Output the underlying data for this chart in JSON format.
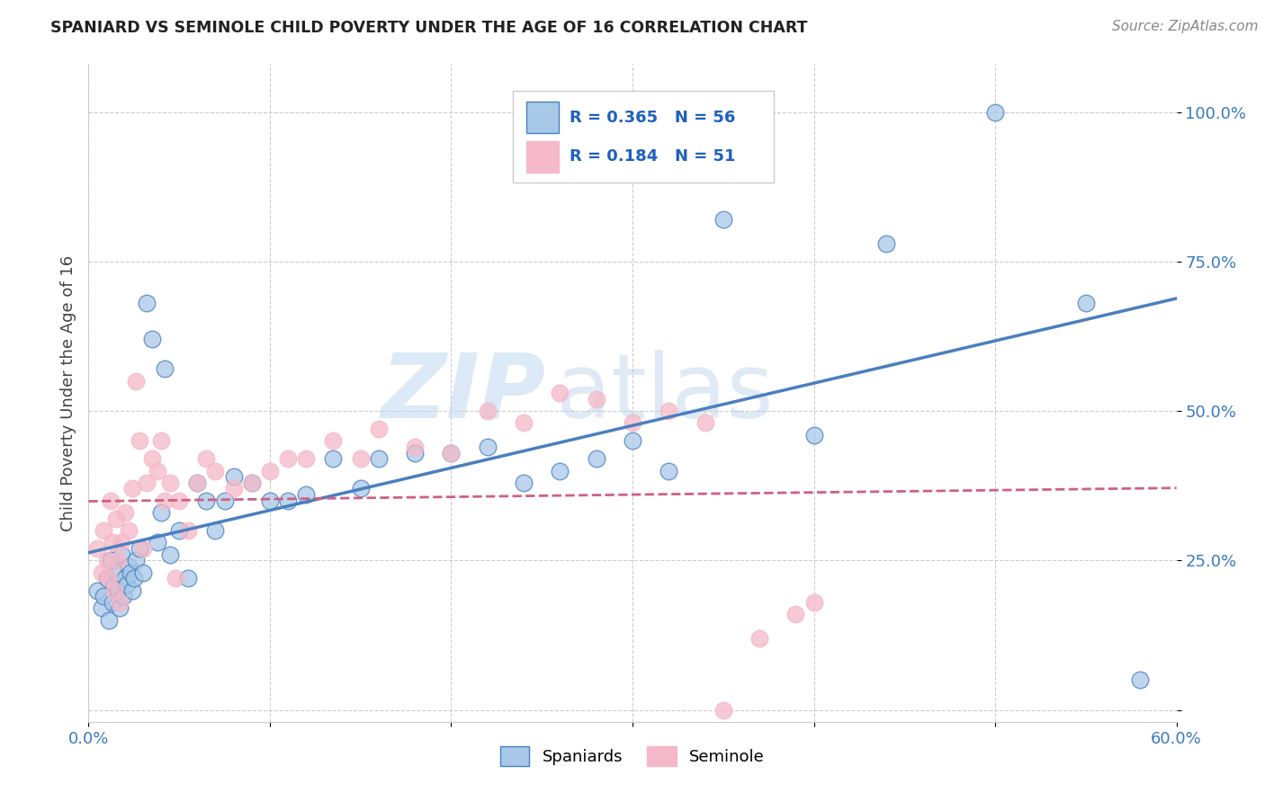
{
  "title": "SPANIARD VS SEMINOLE CHILD POVERTY UNDER THE AGE OF 16 CORRELATION CHART",
  "source": "Source: ZipAtlas.com",
  "ylabel": "Child Poverty Under the Age of 16",
  "R_spaniard": 0.365,
  "N_spaniard": 56,
  "R_seminole": 0.184,
  "N_seminole": 51,
  "color_spaniard": "#a8c8e8",
  "color_seminole": "#f4b8c8",
  "line_color_spaniard": "#4a7fc0",
  "line_color_seminole": "#d06080",
  "watermark_zip": "ZIP",
  "watermark_atlas": "atlas",
  "xlim": [
    0.0,
    0.6
  ],
  "ylim": [
    -0.02,
    1.08
  ],
  "spaniard_x": [
    0.005,
    0.007,
    0.008,
    0.01,
    0.011,
    0.012,
    0.013,
    0.014,
    0.015,
    0.016,
    0.017,
    0.018,
    0.019,
    0.02,
    0.021,
    0.022,
    0.023,
    0.024,
    0.025,
    0.026,
    0.028,
    0.03,
    0.032,
    0.035,
    0.038,
    0.04,
    0.042,
    0.045,
    0.05,
    0.055,
    0.06,
    0.065,
    0.07,
    0.075,
    0.08,
    0.09,
    0.1,
    0.11,
    0.12,
    0.135,
    0.15,
    0.16,
    0.18,
    0.2,
    0.22,
    0.24,
    0.26,
    0.28,
    0.3,
    0.32,
    0.35,
    0.4,
    0.44,
    0.5,
    0.55,
    0.58
  ],
  "spaniard_y": [
    0.2,
    0.17,
    0.19,
    0.22,
    0.15,
    0.25,
    0.18,
    0.21,
    0.23,
    0.2,
    0.17,
    0.26,
    0.19,
    0.22,
    0.21,
    0.24,
    0.23,
    0.2,
    0.22,
    0.25,
    0.27,
    0.23,
    0.68,
    0.62,
    0.28,
    0.33,
    0.57,
    0.26,
    0.3,
    0.22,
    0.38,
    0.35,
    0.3,
    0.35,
    0.39,
    0.38,
    0.35,
    0.35,
    0.36,
    0.42,
    0.37,
    0.42,
    0.43,
    0.43,
    0.44,
    0.38,
    0.4,
    0.42,
    0.45,
    0.4,
    0.82,
    0.46,
    0.78,
    1.0,
    0.68,
    0.05
  ],
  "seminole_x": [
    0.005,
    0.007,
    0.008,
    0.01,
    0.011,
    0.012,
    0.013,
    0.014,
    0.015,
    0.016,
    0.017,
    0.018,
    0.02,
    0.022,
    0.024,
    0.026,
    0.028,
    0.03,
    0.032,
    0.035,
    0.038,
    0.04,
    0.042,
    0.045,
    0.048,
    0.05,
    0.055,
    0.06,
    0.065,
    0.07,
    0.08,
    0.09,
    0.1,
    0.11,
    0.12,
    0.135,
    0.15,
    0.16,
    0.18,
    0.2,
    0.22,
    0.24,
    0.26,
    0.28,
    0.3,
    0.32,
    0.34,
    0.35,
    0.37,
    0.39,
    0.4
  ],
  "seminole_y": [
    0.27,
    0.23,
    0.3,
    0.25,
    0.22,
    0.35,
    0.28,
    0.2,
    0.32,
    0.25,
    0.18,
    0.28,
    0.33,
    0.3,
    0.37,
    0.55,
    0.45,
    0.27,
    0.38,
    0.42,
    0.4,
    0.45,
    0.35,
    0.38,
    0.22,
    0.35,
    0.3,
    0.38,
    0.42,
    0.4,
    0.37,
    0.38,
    0.4,
    0.42,
    0.42,
    0.45,
    0.42,
    0.47,
    0.44,
    0.43,
    0.5,
    0.48,
    0.53,
    0.52,
    0.48,
    0.5,
    0.48,
    0.0,
    0.12,
    0.16,
    0.18
  ]
}
